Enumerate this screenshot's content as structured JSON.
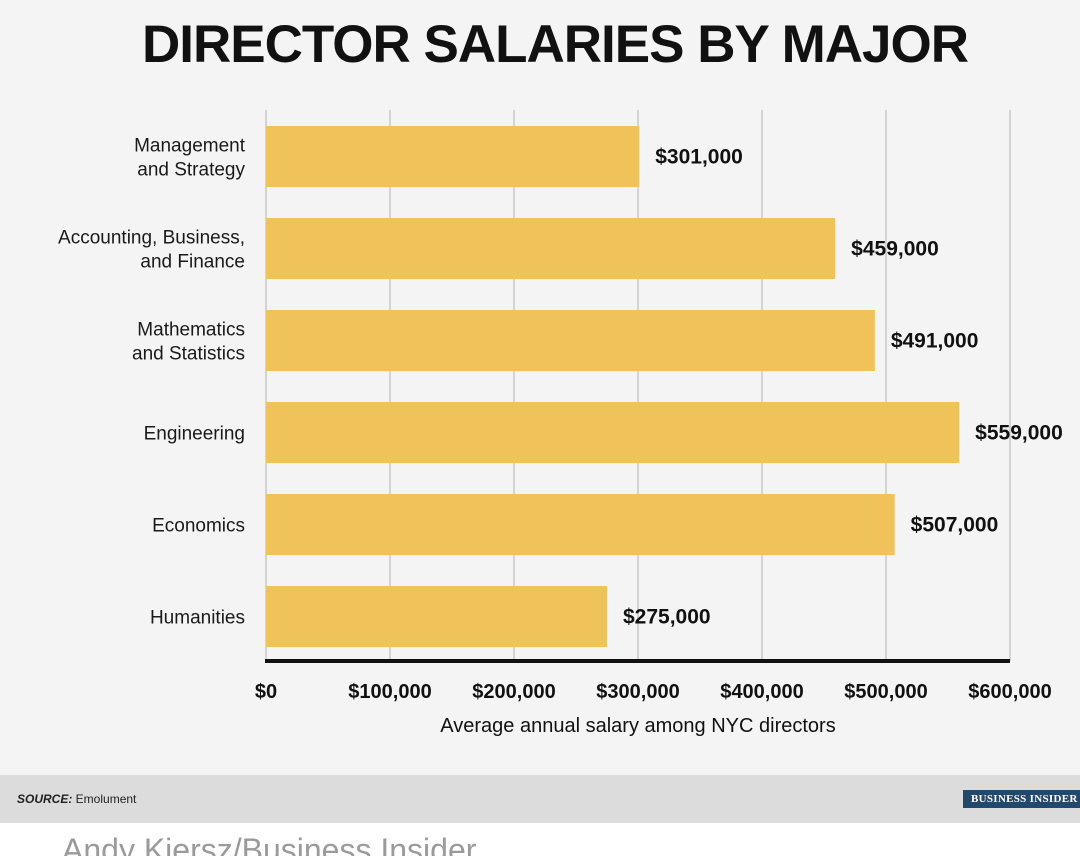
{
  "chart_data": {
    "type": "bar",
    "orientation": "horizontal",
    "title": "DIRECTOR SALARIES BY MAJOR",
    "xlabel": "Average annual salary among NYC directors",
    "ylabel": "",
    "categories": [
      [
        "Management",
        "and Strategy"
      ],
      [
        "Accounting, Business,",
        "and Finance"
      ],
      [
        "Mathematics",
        "and Statistics"
      ],
      [
        "Engineering"
      ],
      [
        "Economics"
      ],
      [
        "Humanities"
      ]
    ],
    "values": [
      301000,
      459000,
      491000,
      559000,
      507000,
      275000
    ],
    "value_labels": [
      "$301,000",
      "$459,000",
      "$491,000",
      "$559,000",
      "$507,000",
      "$275,000"
    ],
    "xlim": [
      0,
      600000
    ],
    "xticks": [
      0,
      100000,
      200000,
      300000,
      400000,
      500000,
      600000
    ],
    "xtick_labels": [
      "$0",
      "$100,000",
      "$200,000",
      "$300,000",
      "$400,000",
      "$500,000",
      "$600,000"
    ],
    "grid": true,
    "bar_color": "#f0c35a"
  },
  "footer": {
    "source_prefix": "SOURCE:",
    "source_name": " Emolument",
    "logo": "BUSINESS INSIDER"
  },
  "credit": "Andy Kiersz/Business Insider",
  "colors": {
    "panel_background": "#f4f4f4",
    "gridline": "#d4d4d4",
    "axis": "#111111",
    "footer_band": "#dcdcdc",
    "logo_background": "#23486e",
    "credit_text": "#9a9a9a"
  }
}
